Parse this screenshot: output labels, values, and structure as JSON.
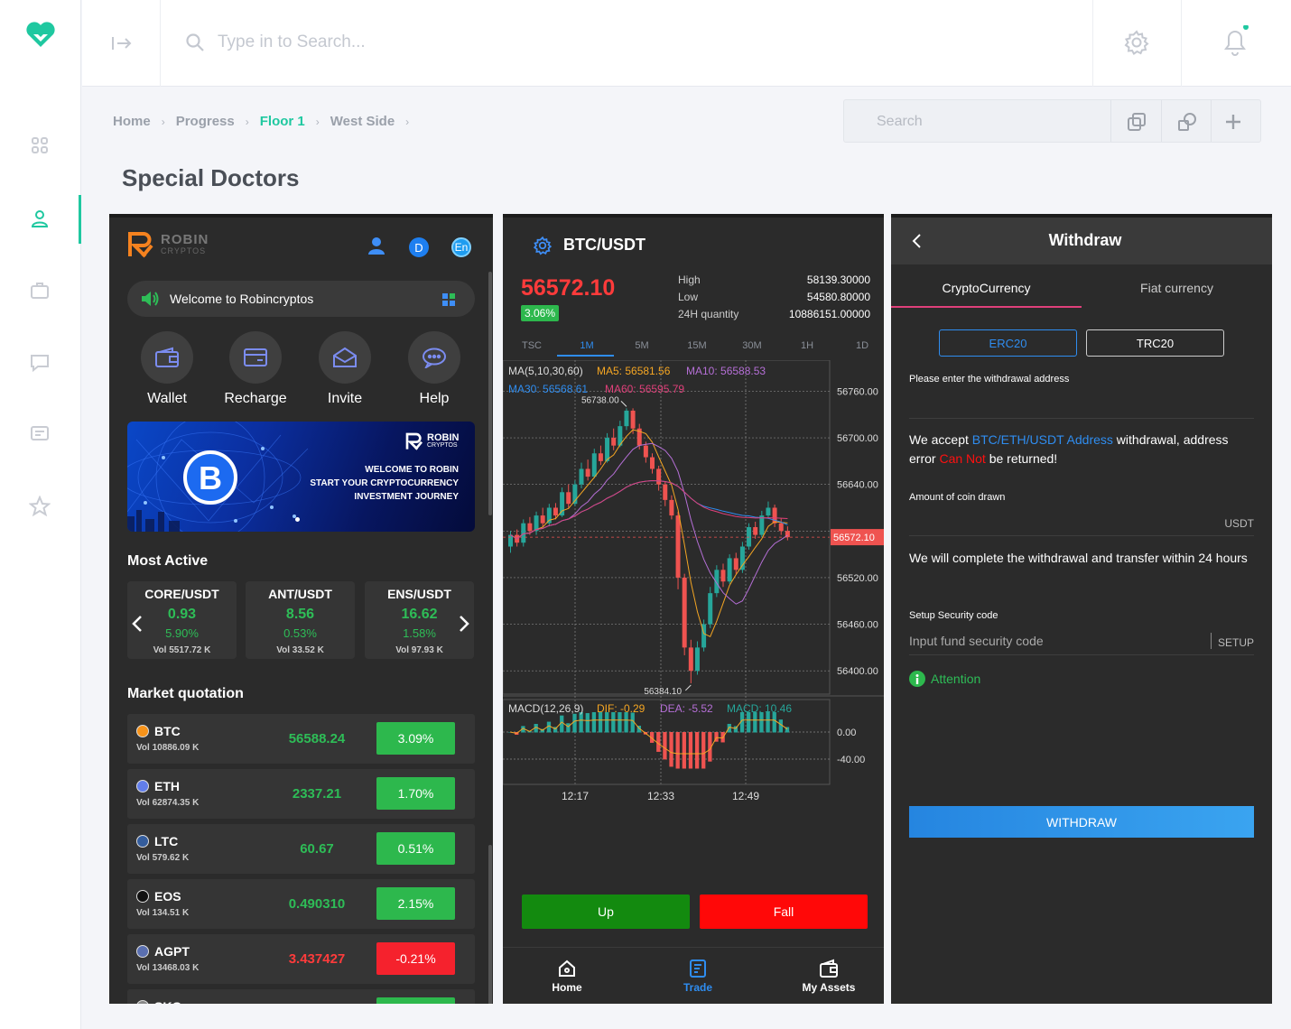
{
  "app": {
    "search_placeholder": "Type in to Search...",
    "breadcrumbs": [
      "Home",
      "Progress",
      "Floor 1",
      "West Side"
    ],
    "toolbar_search_placeholder": "Search",
    "page_title": "Special Doctors",
    "accent_color": "#1fc8a0"
  },
  "panel1": {
    "brand_name": "ROBIN",
    "brand_sub": "CRYPTOS",
    "header_badges": [
      "D",
      "En"
    ],
    "welcome": "Welcome to Robincryptos",
    "menu": [
      "Wallet",
      "Recharge",
      "Invite",
      "Help"
    ],
    "banner": {
      "brand_name": "ROBIN",
      "brand_sub": "CRYPTOS",
      "line1": "WELCOME TO ROBIN",
      "line2": "START YOUR CRYPTOCURRENCY",
      "line3": "INVESTMENT JOURNEY"
    },
    "most_active_title": "Most Active",
    "most_active": [
      {
        "pair": "CORE/USDT",
        "price": "0.93",
        "pct": "5.90%",
        "vol": "Vol 5517.72 K"
      },
      {
        "pair": "ANT/USDT",
        "price": "8.56",
        "pct": "0.53%",
        "vol": "Vol 33.52 K"
      },
      {
        "pair": "ENS/USDT",
        "price": "16.62",
        "pct": "1.58%",
        "vol": "Vol 97.93 K"
      }
    ],
    "market_title": "Market quotation",
    "market": [
      {
        "coin": "BTC",
        "vol": "Vol 10886.09 K",
        "price": "56588.24",
        "change": "3.09%",
        "dir": "up",
        "icon_color": "#f7931a"
      },
      {
        "coin": "ETH",
        "vol": "Vol 62874.35 K",
        "price": "2337.21",
        "change": "1.70%",
        "dir": "up",
        "icon_color": "#627eea"
      },
      {
        "coin": "LTC",
        "vol": "Vol 579.62 K",
        "price": "60.67",
        "change": "0.51%",
        "dir": "up",
        "icon_color": "#345d9d"
      },
      {
        "coin": "EOS",
        "vol": "Vol 134.51 K",
        "price": "0.490310",
        "change": "2.15%",
        "dir": "up",
        "icon_color": "#111111"
      },
      {
        "coin": "AGPT",
        "vol": "Vol 13468.03 K",
        "price": "3.437427",
        "change": "-0.21%",
        "dir": "down",
        "icon_color": "#5a6fb0"
      },
      {
        "coin": "SKG",
        "vol": "",
        "price": "",
        "change": "",
        "dir": "up",
        "icon_color": "#888888"
      }
    ]
  },
  "panel2": {
    "pair": "BTC/USDT",
    "last_price": "56572.10",
    "change_pct": "3.06%",
    "stats": [
      {
        "label": "High",
        "value": "58139.30000"
      },
      {
        "label": "Low",
        "value": "54580.80000"
      },
      {
        "label": "24H quantity",
        "value": "10886151.00000"
      }
    ],
    "timeframes": [
      "TSC",
      "1M",
      "5M",
      "15M",
      "30M",
      "1H",
      "1D"
    ],
    "active_timeframe": "1M",
    "ma_legend": {
      "ma": "MA(5,10,30,60)",
      "ma5": "MA5: 56581.56",
      "ma10": "MA10: 56588.53",
      "ma30": "MA30: 56568.61",
      "ma60": "MA60: 56595.79"
    },
    "macd_legend": {
      "macd": "MACD(12,26,9)",
      "dif": "DIF: -0.29",
      "dea": "DEA: -5.52",
      "macd_val": "MACD: 10.46"
    },
    "up_label": "Up",
    "fall_label": "Fall",
    "nav": [
      {
        "label": "Home",
        "icon": "home-icon"
      },
      {
        "label": "Trade",
        "icon": "trade-icon"
      },
      {
        "label": "My Assets",
        "icon": "wallet-icon"
      }
    ],
    "colors": {
      "up": "#26a69a",
      "down": "#ef5350",
      "ma5": "#f5a623",
      "ma10": "#b56fd6",
      "ma30": "#2f8df0",
      "ma60": "#e0407a"
    }
  },
  "chart_data": {
    "type": "candlestick",
    "title": "BTC/USDT",
    "ylim": [
      56370,
      56800
    ],
    "y_ticks": [
      56760,
      56700,
      56640,
      56580,
      56520,
      56460,
      56400
    ],
    "y_tick_labels": [
      "56760.00",
      "56700.00",
      "56640.00",
      "",
      "56520.00",
      "56460.00",
      "56400.00"
    ],
    "x_tick_labels": [
      "12:17",
      "12:33",
      "12:49"
    ],
    "current_price_label": "56572.10",
    "high_annotation": "56738.00",
    "low_annotation": "56384.10",
    "macd_ticks": [
      "0.00",
      "-40.00"
    ],
    "candles": [
      [
        56560,
        56575,
        56552,
        56580
      ],
      [
        56575,
        56565,
        56560,
        56582
      ],
      [
        56565,
        56590,
        56560,
        56595
      ],
      [
        56590,
        56580,
        56575,
        56598
      ],
      [
        56580,
        56600,
        56575,
        56605
      ],
      [
        56600,
        56590,
        56585,
        56610
      ],
      [
        56590,
        56610,
        56586,
        56615
      ],
      [
        56610,
        56600,
        56595,
        56616
      ],
      [
        56600,
        56630,
        56598,
        56636
      ],
      [
        56630,
        56615,
        56610,
        56640
      ],
      [
        56615,
        56640,
        56612,
        56645
      ],
      [
        56640,
        56660,
        56635,
        56668
      ],
      [
        56660,
        56650,
        56645,
        56672
      ],
      [
        56650,
        56680,
        56648,
        56686
      ],
      [
        56680,
        56670,
        56665,
        56690
      ],
      [
        56670,
        56700,
        56668,
        56706
      ],
      [
        56700,
        56690,
        56684,
        56712
      ],
      [
        56690,
        56715,
        56688,
        56722
      ],
      [
        56715,
        56735,
        56710,
        56738
      ],
      [
        56735,
        56712,
        56705,
        56738
      ],
      [
        56712,
        56690,
        56685,
        56718
      ],
      [
        56690,
        56675,
        56668,
        56695
      ],
      [
        56675,
        56660,
        56654,
        56680
      ],
      [
        56660,
        56640,
        56632,
        56664
      ],
      [
        56640,
        56620,
        56612,
        56644
      ],
      [
        56620,
        56600,
        56595,
        56626
      ],
      [
        56600,
        56520,
        56505,
        56605
      ],
      [
        56520,
        56430,
        56420,
        56525
      ],
      [
        56430,
        56400,
        56384,
        56440
      ],
      [
        56400,
        56430,
        56395,
        56438
      ],
      [
        56430,
        56460,
        56425,
        56466
      ],
      [
        56460,
        56500,
        56455,
        56508
      ],
      [
        56500,
        56530,
        56495,
        56536
      ],
      [
        56530,
        56515,
        56508,
        56538
      ],
      [
        56515,
        56545,
        56512,
        56550
      ],
      [
        56545,
        56530,
        56525,
        56552
      ],
      [
        56530,
        56560,
        56526,
        56566
      ],
      [
        56560,
        56585,
        56556,
        56590
      ],
      [
        56585,
        56575,
        56570,
        56592
      ],
      [
        56575,
        56600,
        56572,
        56606
      ],
      [
        56600,
        56610,
        56596,
        56618
      ],
      [
        56610,
        56590,
        56585,
        56614
      ],
      [
        56590,
        56580,
        56575,
        56596
      ],
      [
        56580,
        56572,
        56568,
        56586
      ]
    ]
  },
  "panel3": {
    "title": "Withdraw",
    "tabs": [
      "CryptoCurrency",
      "Fiat currency"
    ],
    "chains": [
      "ERC20",
      "TRC20"
    ],
    "address_label": "Please enter the withdrawal address",
    "notice_pre": "We accept ",
    "notice_link": "BTC/ETH/USDT Address",
    "notice_mid": " withdrawal, address error ",
    "notice_warn": "Can Not",
    "notice_post": " be returned!",
    "amount_label": "Amount of coin drawn",
    "amount_unit": "USDT",
    "transfer_note": "We will complete the withdrawal and transfer within 24 hours",
    "security_label": "Setup Security code",
    "security_placeholder": "Input fund security code",
    "setup_label": "SETUP",
    "attention": "Attention",
    "withdraw_button": "WITHDRAW"
  }
}
